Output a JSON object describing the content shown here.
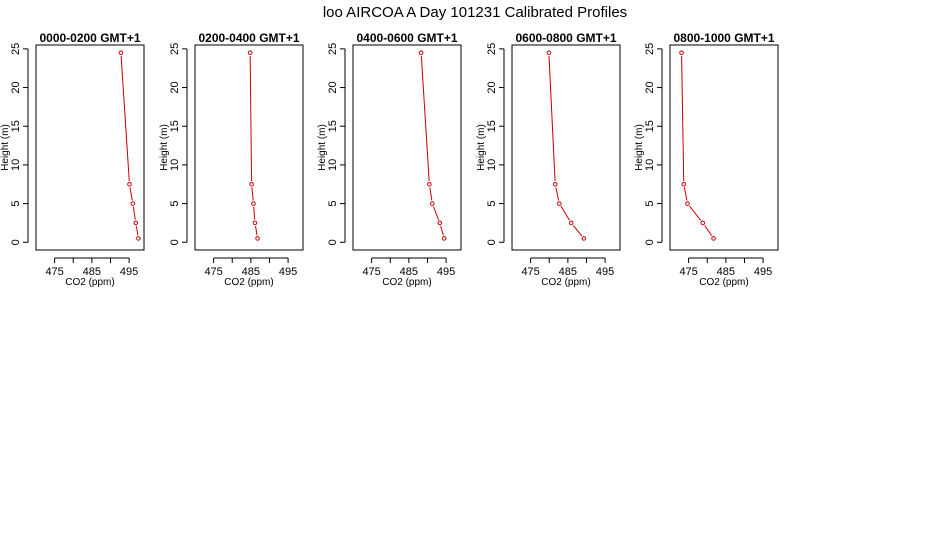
{
  "title": "loo AIRCOA A  Day 101231  Calibrated Profiles",
  "colors": {
    "series": "#cc0000",
    "axis": "#000000"
  },
  "chart_data": [
    {
      "type": "line",
      "title": "0000-0200 GMT+1",
      "xlabel": "CO2 (ppm)",
      "ylabel": "Height (m)",
      "xlim": [
        470,
        499
      ],
      "ylim": [
        -1,
        25.5
      ],
      "xticks": [
        475,
        485,
        495
      ],
      "yticks": [
        0,
        5,
        10,
        15,
        20,
        25
      ],
      "grid": false,
      "x": [
        497.5,
        496.8,
        496.0,
        495.1,
        492.8
      ],
      "y": [
        0.5,
        2.5,
        5,
        7.5,
        24.5
      ]
    },
    {
      "type": "line",
      "title": "0200-0400 GMT+1",
      "xlabel": "CO2 (ppm)",
      "ylabel": "Height (m)",
      "xlim": [
        470,
        499
      ],
      "ylim": [
        -1,
        25.5
      ],
      "xticks": [
        475,
        485,
        495
      ],
      "yticks": [
        0,
        5,
        10,
        15,
        20,
        25
      ],
      "grid": false,
      "x": [
        486.8,
        486.1,
        485.7,
        485.2,
        484.8
      ],
      "y": [
        0.5,
        2.5,
        5,
        7.5,
        24.5
      ]
    },
    {
      "type": "line",
      "title": "0400-0600 GMT+1",
      "xlabel": "CO2 (ppm)",
      "ylabel": "Height (m)",
      "xlim": [
        470,
        499
      ],
      "ylim": [
        -1,
        25.5
      ],
      "xticks": [
        475,
        485,
        495
      ],
      "yticks": [
        0,
        5,
        10,
        15,
        20,
        25
      ],
      "grid": false,
      "x": [
        494.5,
        493.3,
        491.3,
        490.5,
        488.3
      ],
      "y": [
        0.5,
        2.5,
        5,
        7.5,
        24.5
      ]
    },
    {
      "type": "line",
      "title": "0600-0800 GMT+1",
      "xlabel": "CO2 (ppm)",
      "ylabel": "Height (m)",
      "xlim": [
        470,
        499
      ],
      "ylim": [
        -1,
        25.5
      ],
      "xticks": [
        475,
        485,
        495
      ],
      "yticks": [
        0,
        5,
        10,
        15,
        20,
        25
      ],
      "grid": false,
      "x": [
        489.3,
        485.9,
        482.7,
        481.6,
        479.9
      ],
      "y": [
        0.5,
        2.5,
        5,
        7.5,
        24.5
      ]
    },
    {
      "type": "line",
      "title": "0800-1000 GMT+1",
      "xlabel": "CO2 (ppm)",
      "ylabel": "Height (m)",
      "xlim": [
        470,
        499
      ],
      "ylim": [
        -1,
        25.5
      ],
      "xticks": [
        475,
        485,
        495
      ],
      "yticks": [
        0,
        5,
        10,
        15,
        20,
        25
      ],
      "grid": false,
      "x": [
        481.7,
        478.8,
        474.7,
        473.7,
        473.1
      ],
      "y": [
        0.5,
        2.5,
        5,
        7.5,
        24.5
      ]
    }
  ]
}
